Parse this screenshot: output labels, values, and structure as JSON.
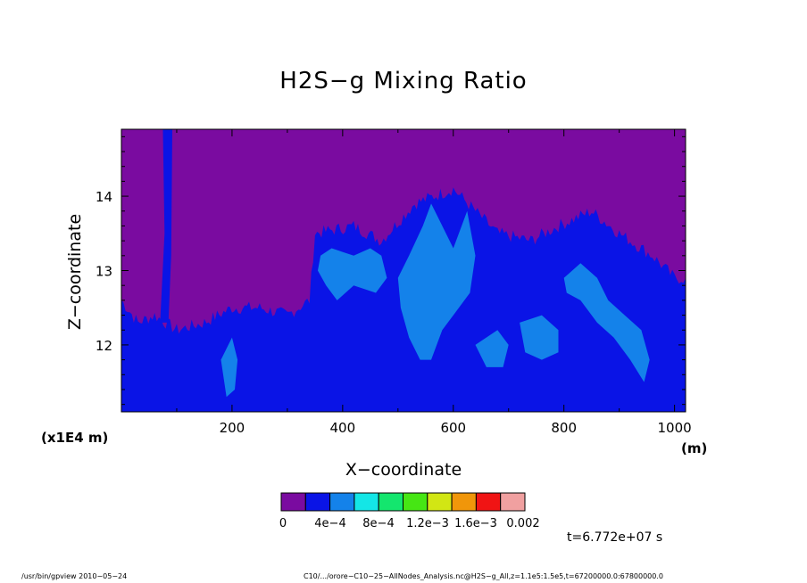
{
  "chart_data": {
    "type": "heatmap",
    "title": "H2S−g Mixing Ratio",
    "xlabel": "X−coordinate",
    "ylabel": "Z−coordinate",
    "x_unit": "(m)",
    "y_scale_note": "(x1E4 m)",
    "xlim": [
      0,
      1020
    ],
    "ylim": [
      11.1,
      14.9
    ],
    "x_ticks": [
      200,
      400,
      600,
      800,
      1000
    ],
    "y_ticks": [
      12,
      13,
      14
    ],
    "colorbar": {
      "colors": [
        "#7a0ba0",
        "#0a14e6",
        "#1482ea",
        "#14e6e6",
        "#14e66e",
        "#46e614",
        "#d2e614",
        "#f0960a",
        "#f01414",
        "#f0a0a0"
      ],
      "labels": [
        "0",
        "4e−4",
        "8e−4",
        "1.2e−3",
        "1.6e−3",
        "0.002"
      ]
    },
    "regions": [
      {
        "level": 0,
        "description_boundary": [
          [
            0,
            12.6
          ],
          [
            30,
            12.3
          ],
          [
            60,
            12.4
          ],
          [
            100,
            12.2
          ],
          [
            150,
            12.3
          ],
          [
            200,
            12.5
          ],
          [
            250,
            12.5
          ],
          [
            300,
            12.4
          ],
          [
            340,
            12.6
          ],
          [
            350,
            13.5
          ],
          [
            420,
            13.6
          ],
          [
            470,
            13.4
          ],
          [
            530,
            13.9
          ],
          [
            600,
            14.1
          ],
          [
            680,
            13.5
          ],
          [
            740,
            13.4
          ],
          [
            790,
            13.6
          ],
          [
            850,
            13.8
          ],
          [
            900,
            13.5
          ],
          [
            960,
            13.2
          ],
          [
            1000,
            12.9
          ],
          [
            1020,
            12.9
          ]
        ]
      }
    ],
    "time": "t=6.772e+07 s"
  },
  "footer": {
    "left": "/usr/bin/gpview   2010−05−24",
    "right": "C10/.../orore−C10−25−AllNodes_Analysis.nc@H2S−g_All,z=1.1e5:1.5e5,t=67200000.0:67800000.0"
  }
}
